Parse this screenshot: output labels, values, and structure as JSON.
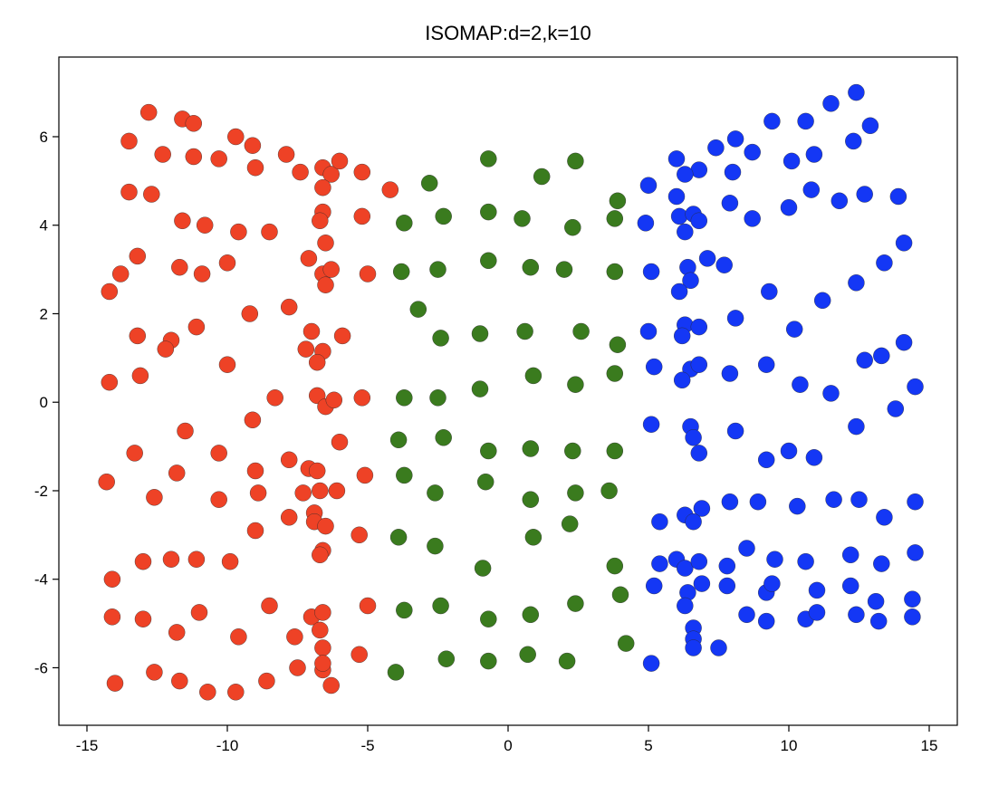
{
  "chart_data": {
    "type": "scatter",
    "title": "ISOMAP:d=2,k=10",
    "xlabel": "",
    "ylabel": "",
    "xlim": [
      -16,
      16
    ],
    "ylim": [
      -7.3,
      7.8
    ],
    "xticks": [
      -15,
      -10,
      -5,
      0,
      5,
      10,
      15
    ],
    "yticks": [
      -6,
      -4,
      -2,
      0,
      2,
      4,
      6
    ],
    "grid": false,
    "legend": "none",
    "series": [
      {
        "color": "#ee4226",
        "points": [
          [
            -12.8,
            6.55
          ],
          [
            -11.6,
            6.4
          ],
          [
            -11.2,
            6.3
          ],
          [
            -13.5,
            5.9
          ],
          [
            -12.3,
            5.6
          ],
          [
            -11.2,
            5.55
          ],
          [
            -10.3,
            5.5
          ],
          [
            -9.7,
            6.0
          ],
          [
            -9.1,
            5.8
          ],
          [
            -9.0,
            5.3
          ],
          [
            -7.9,
            5.6
          ],
          [
            -7.4,
            5.2
          ],
          [
            -6.6,
            5.3
          ],
          [
            -6.3,
            5.15
          ],
          [
            -6.0,
            5.45
          ],
          [
            -5.2,
            5.2
          ],
          [
            -6.6,
            4.85
          ],
          [
            -4.2,
            4.8
          ],
          [
            -13.5,
            4.75
          ],
          [
            -12.7,
            4.7
          ],
          [
            -11.6,
            4.1
          ],
          [
            -10.8,
            4.0
          ],
          [
            -9.6,
            3.85
          ],
          [
            -8.5,
            3.85
          ],
          [
            -6.6,
            4.3
          ],
          [
            -6.7,
            4.1
          ],
          [
            -5.2,
            4.2
          ],
          [
            -6.5,
            3.6
          ],
          [
            -13.2,
            3.3
          ],
          [
            -13.8,
            2.9
          ],
          [
            -11.7,
            3.05
          ],
          [
            -10.9,
            2.9
          ],
          [
            -10.0,
            3.15
          ],
          [
            -7.1,
            3.25
          ],
          [
            -6.6,
            2.9
          ],
          [
            -6.3,
            3.0
          ],
          [
            -6.5,
            2.65
          ],
          [
            -5.0,
            2.9
          ],
          [
            -14.2,
            2.5
          ],
          [
            -9.2,
            2.0
          ],
          [
            -7.8,
            2.15
          ],
          [
            -13.2,
            1.5
          ],
          [
            -12.0,
            1.4
          ],
          [
            -12.2,
            1.2
          ],
          [
            -11.1,
            1.7
          ],
          [
            -7.0,
            1.6
          ],
          [
            -7.2,
            1.2
          ],
          [
            -6.6,
            1.15
          ],
          [
            -6.8,
            0.9
          ],
          [
            -5.9,
            1.5
          ],
          [
            -10.0,
            0.85
          ],
          [
            -14.2,
            0.45
          ],
          [
            -13.1,
            0.6
          ],
          [
            -8.3,
            0.1
          ],
          [
            -6.8,
            0.15
          ],
          [
            -6.5,
            -0.1
          ],
          [
            -6.2,
            0.05
          ],
          [
            -5.2,
            0.1
          ],
          [
            -9.1,
            -0.4
          ],
          [
            -11.5,
            -0.65
          ],
          [
            -6.0,
            -0.9
          ],
          [
            -13.3,
            -1.15
          ],
          [
            -10.3,
            -1.15
          ],
          [
            -7.8,
            -1.3
          ],
          [
            -11.8,
            -1.6
          ],
          [
            -9.0,
            -1.55
          ],
          [
            -7.1,
            -1.5
          ],
          [
            -6.8,
            -1.55
          ],
          [
            -5.1,
            -1.65
          ],
          [
            -14.3,
            -1.8
          ],
          [
            -12.6,
            -2.15
          ],
          [
            -10.3,
            -2.2
          ],
          [
            -8.9,
            -2.05
          ],
          [
            -7.3,
            -2.05
          ],
          [
            -6.7,
            -2.0
          ],
          [
            -6.1,
            -2.0
          ],
          [
            -6.9,
            -2.5
          ],
          [
            -6.9,
            -2.7
          ],
          [
            -7.8,
            -2.6
          ],
          [
            -9.0,
            -2.9
          ],
          [
            -6.5,
            -2.8
          ],
          [
            -5.3,
            -3.0
          ],
          [
            -6.6,
            -3.35
          ],
          [
            -6.7,
            -3.45
          ],
          [
            -14.1,
            -4.0
          ],
          [
            -13.0,
            -3.6
          ],
          [
            -12.0,
            -3.55
          ],
          [
            -11.1,
            -3.55
          ],
          [
            -9.9,
            -3.6
          ],
          [
            -14.1,
            -4.85
          ],
          [
            -13.0,
            -4.9
          ],
          [
            -11.8,
            -5.2
          ],
          [
            -11.0,
            -4.75
          ],
          [
            -8.5,
            -4.6
          ],
          [
            -7.0,
            -4.85
          ],
          [
            -6.6,
            -4.75
          ],
          [
            -6.7,
            -5.15
          ],
          [
            -5.0,
            -4.6
          ],
          [
            -9.6,
            -5.3
          ],
          [
            -7.6,
            -5.3
          ],
          [
            -6.6,
            -5.55
          ],
          [
            -5.3,
            -5.7
          ],
          [
            -14.0,
            -6.35
          ],
          [
            -12.6,
            -6.1
          ],
          [
            -11.7,
            -6.3
          ],
          [
            -10.7,
            -6.55
          ],
          [
            -9.7,
            -6.55
          ],
          [
            -8.6,
            -6.3
          ],
          [
            -7.5,
            -6.0
          ],
          [
            -6.6,
            -6.05
          ],
          [
            -6.6,
            -5.9
          ],
          [
            -6.3,
            -6.4
          ]
        ]
      },
      {
        "color": "#3a7b1e",
        "points": [
          [
            -0.7,
            5.5
          ],
          [
            2.4,
            5.45
          ],
          [
            1.2,
            5.1
          ],
          [
            -2.8,
            4.95
          ],
          [
            3.9,
            4.55
          ],
          [
            -3.7,
            4.05
          ],
          [
            -2.3,
            4.2
          ],
          [
            -0.7,
            4.3
          ],
          [
            0.5,
            4.15
          ],
          [
            2.3,
            3.95
          ],
          [
            3.8,
            4.15
          ],
          [
            -3.8,
            2.95
          ],
          [
            -2.5,
            3.0
          ],
          [
            -0.7,
            3.2
          ],
          [
            0.8,
            3.05
          ],
          [
            2.0,
            3.0
          ],
          [
            3.8,
            2.95
          ],
          [
            -3.2,
            2.1
          ],
          [
            -2.4,
            1.45
          ],
          [
            -1.0,
            1.55
          ],
          [
            0.6,
            1.6
          ],
          [
            2.6,
            1.6
          ],
          [
            3.9,
            1.3
          ],
          [
            -3.7,
            0.1
          ],
          [
            -2.5,
            0.1
          ],
          [
            -1.0,
            0.3
          ],
          [
            0.9,
            0.6
          ],
          [
            2.4,
            0.4
          ],
          [
            3.8,
            0.65
          ],
          [
            -3.9,
            -0.85
          ],
          [
            -2.3,
            -0.8
          ],
          [
            -0.7,
            -1.1
          ],
          [
            0.8,
            -1.05
          ],
          [
            2.3,
            -1.1
          ],
          [
            3.8,
            -1.1
          ],
          [
            -3.7,
            -1.65
          ],
          [
            -2.6,
            -2.05
          ],
          [
            -0.8,
            -1.8
          ],
          [
            0.8,
            -2.2
          ],
          [
            2.4,
            -2.05
          ],
          [
            3.6,
            -2.0
          ],
          [
            -3.9,
            -3.05
          ],
          [
            -2.6,
            -3.25
          ],
          [
            -0.9,
            -3.75
          ],
          [
            0.9,
            -3.05
          ],
          [
            2.2,
            -2.75
          ],
          [
            3.8,
            -3.7
          ],
          [
            -3.7,
            -4.7
          ],
          [
            -2.4,
            -4.6
          ],
          [
            -0.7,
            -4.9
          ],
          [
            0.8,
            -4.8
          ],
          [
            2.4,
            -4.55
          ],
          [
            4.0,
            -4.35
          ],
          [
            -4.0,
            -6.1
          ],
          [
            -2.2,
            -5.8
          ],
          [
            -0.7,
            -5.85
          ],
          [
            0.7,
            -5.7
          ],
          [
            2.1,
            -5.85
          ],
          [
            4.2,
            -5.45
          ]
        ]
      },
      {
        "color": "#1437f5",
        "points": [
          [
            12.4,
            7.0
          ],
          [
            11.5,
            6.75
          ],
          [
            9.4,
            6.35
          ],
          [
            10.6,
            6.35
          ],
          [
            12.9,
            6.25
          ],
          [
            8.1,
            5.95
          ],
          [
            7.4,
            5.75
          ],
          [
            12.3,
            5.9
          ],
          [
            8.7,
            5.65
          ],
          [
            10.9,
            5.6
          ],
          [
            6.0,
            5.5
          ],
          [
            6.8,
            5.25
          ],
          [
            6.3,
            5.15
          ],
          [
            8.0,
            5.2
          ],
          [
            10.1,
            5.45
          ],
          [
            5.0,
            4.9
          ],
          [
            6.0,
            4.65
          ],
          [
            10.8,
            4.8
          ],
          [
            11.8,
            4.55
          ],
          [
            12.7,
            4.7
          ],
          [
            13.9,
            4.65
          ],
          [
            7.9,
            4.5
          ],
          [
            10.0,
            4.4
          ],
          [
            4.9,
            4.05
          ],
          [
            6.1,
            4.2
          ],
          [
            6.6,
            4.25
          ],
          [
            6.8,
            4.1
          ],
          [
            8.7,
            4.15
          ],
          [
            6.3,
            3.85
          ],
          [
            14.1,
            3.6
          ],
          [
            7.1,
            3.25
          ],
          [
            7.7,
            3.1
          ],
          [
            13.4,
            3.15
          ],
          [
            5.1,
            2.95
          ],
          [
            6.4,
            3.05
          ],
          [
            6.5,
            2.75
          ],
          [
            12.4,
            2.7
          ],
          [
            6.1,
            2.5
          ],
          [
            9.3,
            2.5
          ],
          [
            11.2,
            2.3
          ],
          [
            8.1,
            1.9
          ],
          [
            5.0,
            1.6
          ],
          [
            6.3,
            1.75
          ],
          [
            6.2,
            1.5
          ],
          [
            6.8,
            1.7
          ],
          [
            10.2,
            1.65
          ],
          [
            14.1,
            1.35
          ],
          [
            13.3,
            1.05
          ],
          [
            12.7,
            0.95
          ],
          [
            9.2,
            0.85
          ],
          [
            6.5,
            0.75
          ],
          [
            6.8,
            0.85
          ],
          [
            7.9,
            0.65
          ],
          [
            5.2,
            0.8
          ],
          [
            6.2,
            0.5
          ],
          [
            10.4,
            0.4
          ],
          [
            11.5,
            0.2
          ],
          [
            14.5,
            0.35
          ],
          [
            5.1,
            -0.5
          ],
          [
            6.5,
            -0.55
          ],
          [
            6.6,
            -0.8
          ],
          [
            8.1,
            -0.65
          ],
          [
            12.4,
            -0.55
          ],
          [
            13.8,
            -0.15
          ],
          [
            6.8,
            -1.15
          ],
          [
            9.2,
            -1.3
          ],
          [
            10.0,
            -1.1
          ],
          [
            10.9,
            -1.25
          ],
          [
            7.9,
            -2.25
          ],
          [
            8.9,
            -2.25
          ],
          [
            10.3,
            -2.35
          ],
          [
            11.6,
            -2.2
          ],
          [
            12.5,
            -2.2
          ],
          [
            14.5,
            -2.25
          ],
          [
            6.9,
            -2.4
          ],
          [
            6.3,
            -2.55
          ],
          [
            6.6,
            -2.7
          ],
          [
            5.4,
            -2.7
          ],
          [
            13.4,
            -2.6
          ],
          [
            5.4,
            -3.65
          ],
          [
            6.0,
            -3.55
          ],
          [
            6.3,
            -3.75
          ],
          [
            6.8,
            -3.6
          ],
          [
            7.8,
            -3.7
          ],
          [
            8.5,
            -3.3
          ],
          [
            9.5,
            -3.55
          ],
          [
            10.6,
            -3.6
          ],
          [
            12.2,
            -3.45
          ],
          [
            14.5,
            -3.4
          ],
          [
            13.3,
            -3.65
          ],
          [
            5.2,
            -4.15
          ],
          [
            6.4,
            -4.3
          ],
          [
            6.3,
            -4.6
          ],
          [
            6.9,
            -4.1
          ],
          [
            7.8,
            -4.15
          ],
          [
            9.2,
            -4.3
          ],
          [
            9.4,
            -4.1
          ],
          [
            11.0,
            -4.25
          ],
          [
            12.2,
            -4.15
          ],
          [
            13.1,
            -4.5
          ],
          [
            14.4,
            -4.45
          ],
          [
            8.5,
            -4.8
          ],
          [
            9.2,
            -4.95
          ],
          [
            10.6,
            -4.9
          ],
          [
            11.0,
            -4.75
          ],
          [
            12.4,
            -4.8
          ],
          [
            13.2,
            -4.95
          ],
          [
            14.4,
            -4.85
          ],
          [
            6.6,
            -5.1
          ],
          [
            6.6,
            -5.35
          ],
          [
            6.6,
            -5.55
          ],
          [
            7.5,
            -5.55
          ],
          [
            5.1,
            -5.9
          ]
        ]
      }
    ]
  }
}
